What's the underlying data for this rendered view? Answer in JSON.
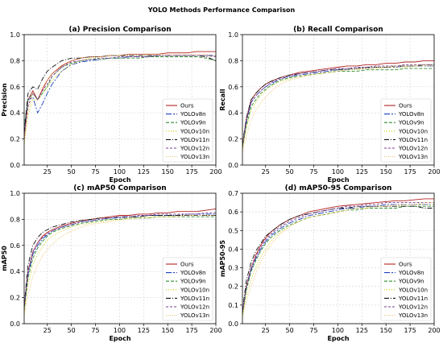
{
  "figure_title": "YOLO Methods Performance Comparison",
  "legend_entries": [
    "Ours",
    "YOLOv8n",
    "YOLOv9n",
    "YOLOv10n",
    "YOLOv11n",
    "YOLOv12n",
    "YOLOv13n"
  ],
  "series_colors": [
    "#b22222",
    "#1f3fbf",
    "#2e8b2e",
    "#c8c800",
    "#111111",
    "#7b3f8f",
    "#f0c070"
  ],
  "chart_data": [
    {
      "type": "line",
      "title": "(a) Precision Comparison",
      "xlabel": "Epoch",
      "ylabel": "Precision",
      "xlim": [
        1,
        200
      ],
      "ylim": [
        0,
        1.0
      ],
      "xticks": [
        "25",
        "50",
        "75",
        "100",
        "125",
        "150",
        "175",
        "200"
      ],
      "yticks": [
        "0.0",
        "0.2",
        "0.4",
        "0.6",
        "0.8",
        "1.0"
      ],
      "grid": true,
      "legend_position": "lower-right",
      "x": [
        1,
        5,
        10,
        15,
        20,
        25,
        30,
        40,
        50,
        60,
        70,
        80,
        90,
        100,
        110,
        120,
        130,
        140,
        150,
        160,
        170,
        180,
        190,
        200
      ],
      "series": [
        {
          "name": "Ours",
          "values": [
            0.2,
            0.5,
            0.57,
            0.5,
            0.58,
            0.65,
            0.7,
            0.76,
            0.8,
            0.82,
            0.83,
            0.83,
            0.84,
            0.84,
            0.85,
            0.85,
            0.85,
            0.85,
            0.86,
            0.86,
            0.86,
            0.87,
            0.87,
            0.87
          ]
        },
        {
          "name": "YOLOv8n",
          "values": [
            0.25,
            0.5,
            0.52,
            0.4,
            0.47,
            0.55,
            0.62,
            0.72,
            0.77,
            0.79,
            0.8,
            0.81,
            0.82,
            0.82,
            0.83,
            0.83,
            0.83,
            0.84,
            0.84,
            0.84,
            0.84,
            0.84,
            0.84,
            0.84
          ]
        },
        {
          "name": "YOLOv9n",
          "values": [
            0.3,
            0.5,
            0.55,
            0.5,
            0.55,
            0.6,
            0.68,
            0.75,
            0.78,
            0.8,
            0.81,
            0.81,
            0.82,
            0.82,
            0.82,
            0.82,
            0.83,
            0.83,
            0.83,
            0.83,
            0.83,
            0.83,
            0.82,
            0.8
          ]
        },
        {
          "name": "YOLOv10n",
          "values": [
            0.15,
            0.38,
            0.5,
            0.5,
            0.55,
            0.6,
            0.65,
            0.72,
            0.77,
            0.8,
            0.82,
            0.83,
            0.84,
            0.84,
            0.84,
            0.84,
            0.84,
            0.84,
            0.84,
            0.84,
            0.84,
            0.84,
            0.84,
            0.83
          ]
        },
        {
          "name": "YOLOv11n",
          "values": [
            0.25,
            0.55,
            0.6,
            0.58,
            0.66,
            0.72,
            0.75,
            0.8,
            0.82,
            0.82,
            0.83,
            0.83,
            0.84,
            0.84,
            0.84,
            0.84,
            0.84,
            0.84,
            0.84,
            0.84,
            0.84,
            0.84,
            0.83,
            0.8
          ]
        },
        {
          "name": "YOLOv12n",
          "values": [
            0.2,
            0.45,
            0.55,
            0.5,
            0.57,
            0.62,
            0.68,
            0.75,
            0.79,
            0.8,
            0.81,
            0.82,
            0.82,
            0.83,
            0.83,
            0.83,
            0.83,
            0.84,
            0.84,
            0.84,
            0.84,
            0.84,
            0.84,
            0.83
          ]
        },
        {
          "name": "YOLOv13n",
          "values": [
            0.2,
            0.42,
            0.55,
            0.55,
            0.6,
            0.65,
            0.7,
            0.77,
            0.8,
            0.82,
            0.83,
            0.83,
            0.84,
            0.84,
            0.85,
            0.85,
            0.85,
            0.85,
            0.85,
            0.85,
            0.85,
            0.85,
            0.85,
            0.84
          ]
        }
      ]
    },
    {
      "type": "line",
      "title": "(b) Recall Comparison",
      "xlabel": "Epoch",
      "ylabel": "Recall",
      "xlim": [
        1,
        200
      ],
      "ylim": [
        0,
        1.0
      ],
      "xticks": [
        "25",
        "50",
        "75",
        "100",
        "125",
        "150",
        "175",
        "200"
      ],
      "yticks": [
        "0.0",
        "0.2",
        "0.4",
        "0.6",
        "0.8",
        "1.0"
      ],
      "grid": true,
      "legend_position": "lower-right",
      "x": [
        1,
        5,
        10,
        15,
        20,
        25,
        30,
        40,
        50,
        60,
        70,
        80,
        90,
        100,
        110,
        120,
        130,
        140,
        150,
        160,
        170,
        180,
        190,
        200
      ],
      "series": [
        {
          "name": "Ours",
          "values": [
            0.15,
            0.35,
            0.5,
            0.55,
            0.59,
            0.62,
            0.64,
            0.67,
            0.69,
            0.71,
            0.72,
            0.73,
            0.74,
            0.75,
            0.76,
            0.76,
            0.77,
            0.77,
            0.78,
            0.78,
            0.79,
            0.79,
            0.8,
            0.8
          ]
        },
        {
          "name": "YOLOv8n",
          "values": [
            0.15,
            0.33,
            0.48,
            0.53,
            0.57,
            0.6,
            0.62,
            0.66,
            0.68,
            0.69,
            0.7,
            0.71,
            0.72,
            0.73,
            0.73,
            0.74,
            0.74,
            0.75,
            0.75,
            0.75,
            0.76,
            0.76,
            0.76,
            0.76
          ]
        },
        {
          "name": "YOLOv9n",
          "values": [
            0.13,
            0.3,
            0.45,
            0.5,
            0.55,
            0.58,
            0.61,
            0.65,
            0.67,
            0.68,
            0.69,
            0.7,
            0.71,
            0.72,
            0.72,
            0.72,
            0.73,
            0.73,
            0.73,
            0.73,
            0.74,
            0.74,
            0.74,
            0.74
          ]
        },
        {
          "name": "YOLOv10n",
          "values": [
            0.12,
            0.28,
            0.42,
            0.48,
            0.53,
            0.57,
            0.6,
            0.64,
            0.66,
            0.68,
            0.69,
            0.7,
            0.71,
            0.72,
            0.73,
            0.73,
            0.74,
            0.74,
            0.75,
            0.75,
            0.75,
            0.76,
            0.76,
            0.76
          ]
        },
        {
          "name": "YOLOv11n",
          "values": [
            0.16,
            0.36,
            0.5,
            0.55,
            0.59,
            0.62,
            0.64,
            0.67,
            0.69,
            0.7,
            0.71,
            0.72,
            0.73,
            0.73,
            0.74,
            0.74,
            0.75,
            0.75,
            0.75,
            0.76,
            0.76,
            0.76,
            0.77,
            0.77
          ]
        },
        {
          "name": "YOLOv12n",
          "values": [
            0.15,
            0.34,
            0.48,
            0.53,
            0.57,
            0.6,
            0.63,
            0.66,
            0.68,
            0.7,
            0.71,
            0.72,
            0.73,
            0.74,
            0.74,
            0.75,
            0.75,
            0.76,
            0.76,
            0.76,
            0.77,
            0.77,
            0.77,
            0.77
          ]
        },
        {
          "name": "YOLOv13n",
          "values": [
            0.1,
            0.22,
            0.35,
            0.42,
            0.48,
            0.52,
            0.56,
            0.62,
            0.65,
            0.67,
            0.69,
            0.7,
            0.71,
            0.72,
            0.73,
            0.74,
            0.74,
            0.75,
            0.75,
            0.76,
            0.76,
            0.76,
            0.77,
            0.77
          ]
        }
      ]
    },
    {
      "type": "line",
      "title": "(c) mAP50 Comparison",
      "xlabel": "Epoch",
      "ylabel": "mAP50",
      "xlim": [
        1,
        200
      ],
      "ylim": [
        0,
        1.0
      ],
      "xticks": [
        "25",
        "50",
        "75",
        "100",
        "125",
        "150",
        "175",
        "200"
      ],
      "yticks": [
        "0.0",
        "0.2",
        "0.4",
        "0.6",
        "0.8",
        "1.0"
      ],
      "grid": true,
      "legend_position": "lower-right",
      "x": [
        1,
        5,
        10,
        15,
        20,
        25,
        30,
        40,
        50,
        60,
        70,
        80,
        90,
        100,
        110,
        120,
        130,
        140,
        150,
        160,
        170,
        180,
        190,
        200
      ],
      "series": [
        {
          "name": "Ours",
          "values": [
            0.12,
            0.4,
            0.55,
            0.62,
            0.67,
            0.7,
            0.72,
            0.75,
            0.77,
            0.79,
            0.8,
            0.81,
            0.82,
            0.83,
            0.83,
            0.84,
            0.84,
            0.85,
            0.85,
            0.86,
            0.86,
            0.86,
            0.87,
            0.88
          ]
        },
        {
          "name": "YOLOv8n",
          "values": [
            0.12,
            0.38,
            0.53,
            0.6,
            0.65,
            0.68,
            0.71,
            0.74,
            0.76,
            0.78,
            0.79,
            0.8,
            0.81,
            0.81,
            0.82,
            0.82,
            0.83,
            0.83,
            0.83,
            0.83,
            0.84,
            0.84,
            0.84,
            0.84
          ]
        },
        {
          "name": "YOLOv9n",
          "values": [
            0.1,
            0.35,
            0.5,
            0.58,
            0.63,
            0.67,
            0.7,
            0.73,
            0.75,
            0.77,
            0.78,
            0.79,
            0.8,
            0.8,
            0.81,
            0.81,
            0.81,
            0.82,
            0.82,
            0.82,
            0.82,
            0.82,
            0.82,
            0.82
          ]
        },
        {
          "name": "YOLOv10n",
          "values": [
            0.08,
            0.3,
            0.45,
            0.53,
            0.59,
            0.64,
            0.67,
            0.71,
            0.74,
            0.76,
            0.77,
            0.78,
            0.79,
            0.8,
            0.81,
            0.81,
            0.82,
            0.82,
            0.82,
            0.83,
            0.83,
            0.83,
            0.83,
            0.83
          ]
        },
        {
          "name": "YOLOv11n",
          "values": [
            0.14,
            0.45,
            0.6,
            0.66,
            0.7,
            0.72,
            0.74,
            0.76,
            0.78,
            0.79,
            0.8,
            0.81,
            0.81,
            0.82,
            0.82,
            0.82,
            0.83,
            0.83,
            0.83,
            0.83,
            0.83,
            0.83,
            0.83,
            0.83
          ]
        },
        {
          "name": "YOLOv12n",
          "values": [
            0.12,
            0.4,
            0.55,
            0.62,
            0.66,
            0.69,
            0.71,
            0.74,
            0.76,
            0.78,
            0.79,
            0.8,
            0.81,
            0.82,
            0.82,
            0.83,
            0.83,
            0.84,
            0.84,
            0.84,
            0.84,
            0.84,
            0.85,
            0.85
          ]
        },
        {
          "name": "YOLOv13n",
          "values": [
            0.06,
            0.22,
            0.36,
            0.45,
            0.52,
            0.57,
            0.61,
            0.67,
            0.71,
            0.74,
            0.76,
            0.77,
            0.78,
            0.79,
            0.8,
            0.81,
            0.81,
            0.82,
            0.82,
            0.82,
            0.83,
            0.83,
            0.83,
            0.83
          ]
        }
      ]
    },
    {
      "type": "line",
      "title": "(d) mAP50-95 Comparison",
      "xlabel": "Epoch",
      "ylabel": "mAP50-95",
      "xlim": [
        1,
        200
      ],
      "ylim": [
        0,
        0.7
      ],
      "xticks": [
        "25",
        "50",
        "75",
        "100",
        "125",
        "150",
        "175",
        "200"
      ],
      "yticks": [
        "0.0",
        "0.1",
        "0.2",
        "0.3",
        "0.4",
        "0.5",
        "0.6",
        "0.7"
      ],
      "grid": true,
      "legend_position": "lower-right",
      "x": [
        1,
        5,
        10,
        15,
        20,
        25,
        30,
        40,
        50,
        60,
        70,
        80,
        90,
        100,
        110,
        120,
        130,
        140,
        150,
        160,
        170,
        180,
        190,
        200
      ],
      "series": [
        {
          "name": "Ours",
          "values": [
            0.06,
            0.2,
            0.3,
            0.37,
            0.42,
            0.46,
            0.49,
            0.53,
            0.56,
            0.58,
            0.6,
            0.61,
            0.62,
            0.63,
            0.635,
            0.64,
            0.645,
            0.65,
            0.655,
            0.66,
            0.66,
            0.665,
            0.67,
            0.67
          ]
        },
        {
          "name": "YOLOv8n",
          "values": [
            0.06,
            0.19,
            0.29,
            0.35,
            0.4,
            0.44,
            0.47,
            0.51,
            0.54,
            0.56,
            0.58,
            0.59,
            0.6,
            0.61,
            0.62,
            0.62,
            0.63,
            0.63,
            0.64,
            0.64,
            0.64,
            0.64,
            0.64,
            0.64
          ]
        },
        {
          "name": "YOLOv9n",
          "values": [
            0.05,
            0.18,
            0.28,
            0.34,
            0.39,
            0.43,
            0.46,
            0.5,
            0.53,
            0.55,
            0.57,
            0.58,
            0.59,
            0.6,
            0.61,
            0.61,
            0.62,
            0.62,
            0.62,
            0.62,
            0.63,
            0.63,
            0.63,
            0.63
          ]
        },
        {
          "name": "YOLOv10n",
          "values": [
            0.04,
            0.15,
            0.24,
            0.3,
            0.36,
            0.4,
            0.44,
            0.49,
            0.52,
            0.55,
            0.57,
            0.58,
            0.59,
            0.6,
            0.61,
            0.62,
            0.62,
            0.63,
            0.63,
            0.63,
            0.64,
            0.64,
            0.64,
            0.64
          ]
        },
        {
          "name": "YOLOv11n",
          "values": [
            0.07,
            0.23,
            0.33,
            0.39,
            0.43,
            0.47,
            0.49,
            0.53,
            0.56,
            0.58,
            0.59,
            0.6,
            0.61,
            0.62,
            0.62,
            0.63,
            0.63,
            0.63,
            0.63,
            0.63,
            0.63,
            0.63,
            0.62,
            0.62
          ]
        },
        {
          "name": "YOLOv12n",
          "values": [
            0.06,
            0.2,
            0.3,
            0.36,
            0.41,
            0.45,
            0.48,
            0.52,
            0.55,
            0.57,
            0.59,
            0.6,
            0.61,
            0.62,
            0.63,
            0.63,
            0.64,
            0.64,
            0.65,
            0.65,
            0.65,
            0.65,
            0.65,
            0.65
          ]
        },
        {
          "name": "YOLOv13n",
          "values": [
            0.03,
            0.12,
            0.2,
            0.27,
            0.33,
            0.38,
            0.42,
            0.48,
            0.52,
            0.55,
            0.57,
            0.58,
            0.59,
            0.6,
            0.61,
            0.62,
            0.62,
            0.63,
            0.63,
            0.64,
            0.64,
            0.64,
            0.65,
            0.65
          ]
        }
      ]
    }
  ]
}
